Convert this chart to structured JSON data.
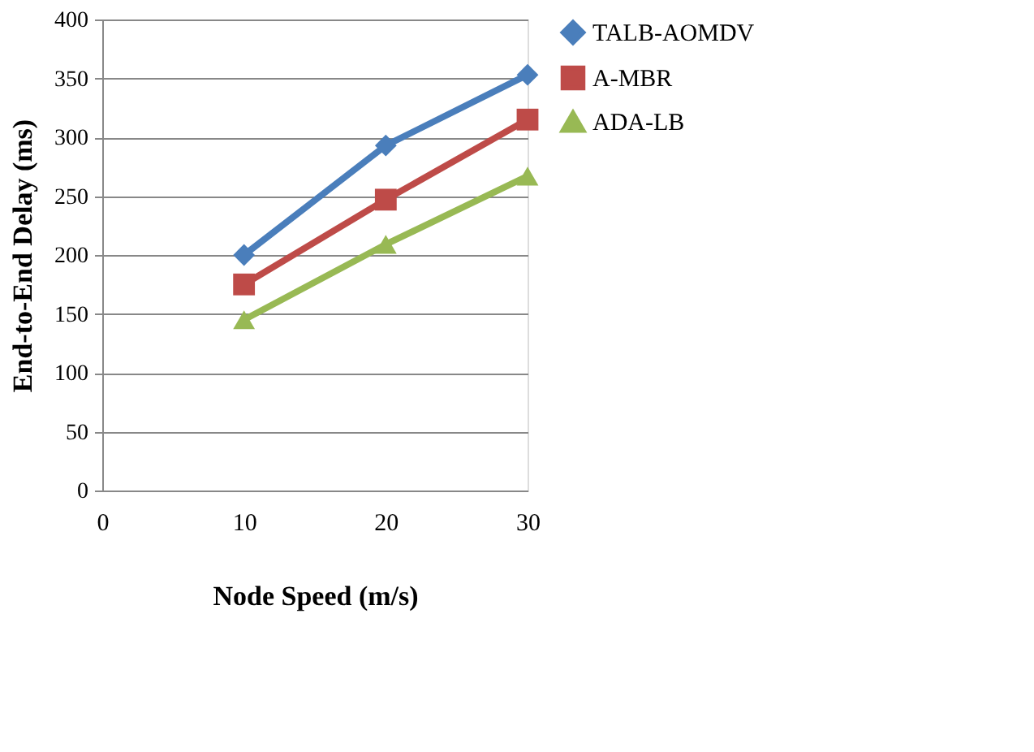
{
  "chart_data": {
    "type": "line",
    "xlabel": "Node Speed (m/s)",
    "ylabel": "End-to-End Delay (ms)",
    "x": [
      10,
      20,
      30
    ],
    "xlim": [
      0,
      30
    ],
    "xticks": [
      0,
      10,
      20,
      30
    ],
    "ylim": [
      0,
      400
    ],
    "yticks": [
      0,
      50,
      100,
      150,
      200,
      250,
      300,
      350,
      400
    ],
    "grid": "y",
    "legend": "right",
    "line_style": "solid",
    "series": [
      {
        "name": "TALB-AOMDV",
        "color": "#4a7ebb",
        "marker": "diamond",
        "values": [
          200,
          293,
          353
        ]
      },
      {
        "name": "A-MBR",
        "color": "#be4b48",
        "marker": "square",
        "values": [
          175,
          247,
          315
        ]
      },
      {
        "name": "ADA-LB",
        "color": "#98b954",
        "marker": "triangle",
        "values": [
          145,
          209,
          267
        ]
      }
    ]
  }
}
